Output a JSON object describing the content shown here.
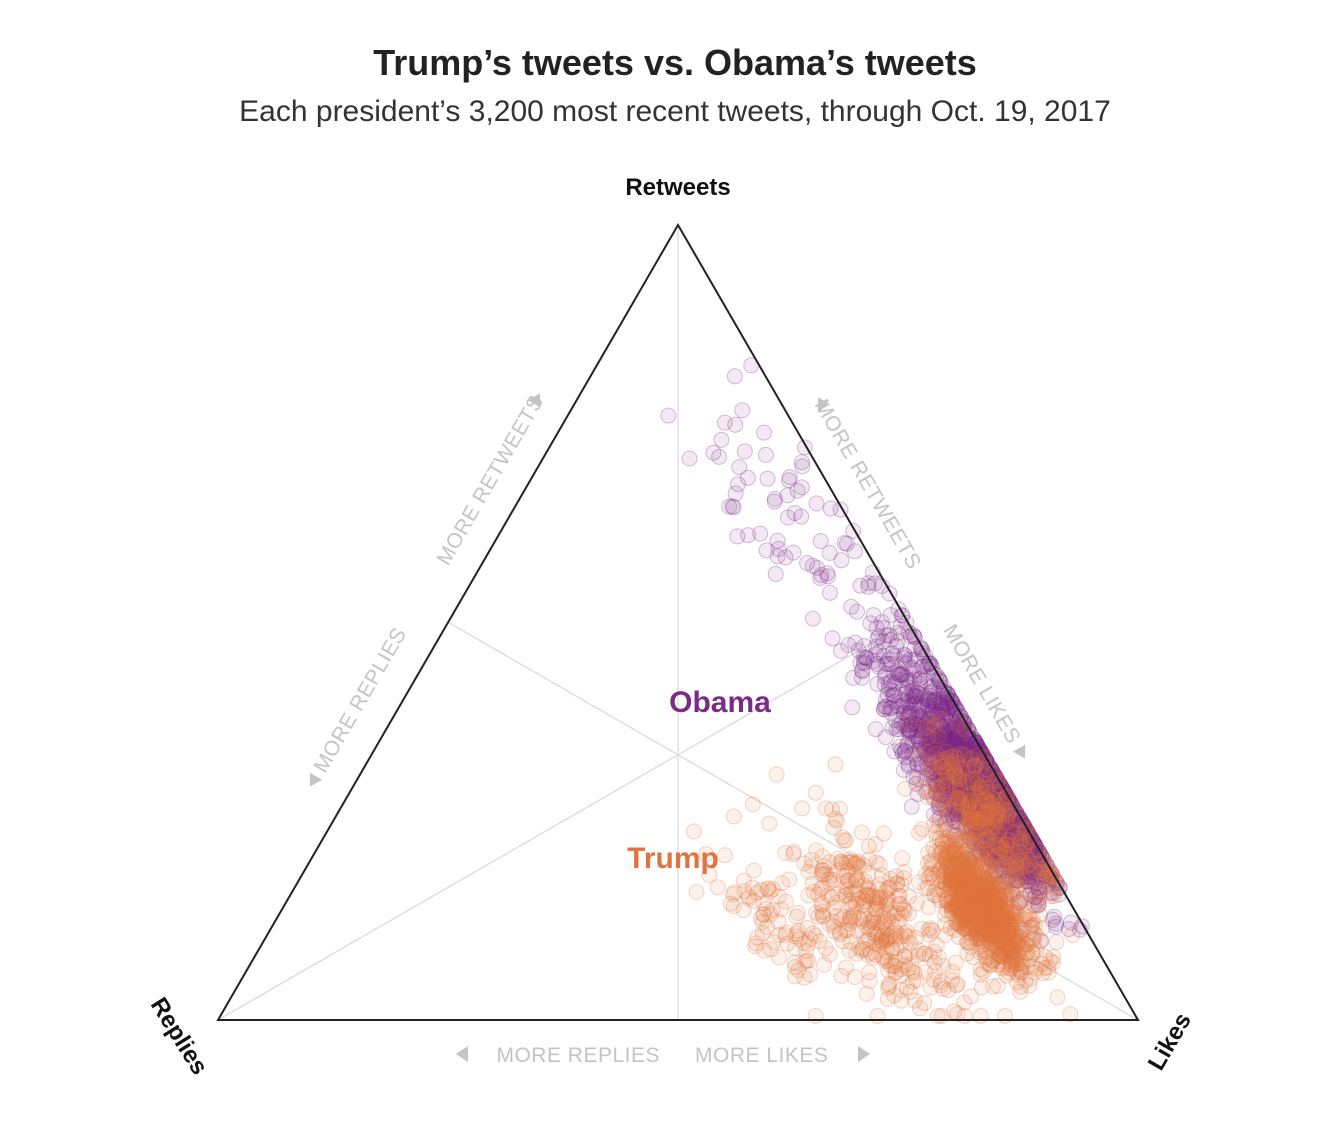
{
  "title": "Trump’s tweets vs. Obama’s tweets",
  "subtitle": "Each president’s 3,200 most recent tweets, through Oct. 19, 2017",
  "chart_data": {
    "type": "scatter",
    "subtype": "ternary",
    "title": "Trump’s tweets vs. Obama’s tweets",
    "subtitle": "Each president’s 3,200 most recent tweets, through Oct. 19, 2017",
    "corners": {
      "top": "Retweets",
      "left": "Replies",
      "right": "Likes"
    },
    "direction_labels": {
      "left_edge_retweets": "MORE RETWEETS",
      "left_edge_replies": "MORE REPLIES",
      "right_edge_retweets": "MORE RETWEETS",
      "right_edge_likes": "MORE LIKES",
      "bottom_replies": "MORE REPLIES",
      "bottom_likes": "MORE LIKES"
    },
    "components": [
      "retweets",
      "replies",
      "likes"
    ],
    "grid": true,
    "series": [
      {
        "name": "Obama",
        "color": "#7b2a85",
        "point_count": 3200,
        "clusters": [
          {
            "retweets": 0.29,
            "replies": 0.03,
            "likes": 0.68,
            "spread": 0.05,
            "share": 0.5
          },
          {
            "retweets": 0.38,
            "replies": 0.03,
            "likes": 0.59,
            "spread": 0.06,
            "share": 0.25
          },
          {
            "retweets": 0.22,
            "replies": 0.03,
            "likes": 0.75,
            "spread": 0.04,
            "share": 0.2
          },
          {
            "retweets": 0.6,
            "replies": 0.05,
            "likes": 0.35,
            "spread": 0.08,
            "share": 0.05
          }
        ]
      },
      {
        "name": "Trump",
        "color": "#e0733f",
        "point_count": 3200,
        "clusters": [
          {
            "retweets": 0.14,
            "replies": 0.1,
            "likes": 0.76,
            "spread": 0.04,
            "share": 0.55
          },
          {
            "retweets": 0.25,
            "replies": 0.04,
            "likes": 0.71,
            "spread": 0.05,
            "share": 0.2
          },
          {
            "retweets": 0.13,
            "replies": 0.22,
            "likes": 0.65,
            "spread": 0.06,
            "share": 0.2
          },
          {
            "retweets": 0.12,
            "replies": 0.33,
            "likes": 0.55,
            "spread": 0.05,
            "share": 0.05
          }
        ]
      }
    ]
  }
}
